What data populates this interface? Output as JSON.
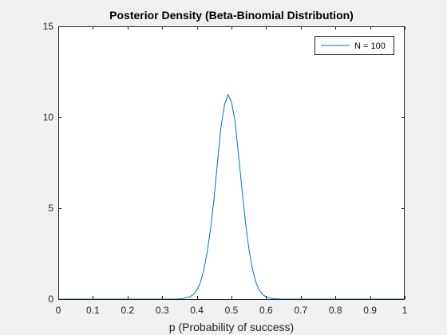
{
  "chart_data": {
    "type": "line",
    "title": "Posterior Density (Beta-Binomial Distribution)",
    "xlabel": "p (Probability of success)",
    "ylabel": "",
    "xlim": [
      0,
      1
    ],
    "ylim": [
      0,
      15
    ],
    "xticks": [
      0,
      0.1,
      0.2,
      0.3,
      0.4,
      0.5,
      0.6,
      0.7,
      0.8,
      0.9,
      1
    ],
    "xtick_labels": [
      "0",
      "0.1",
      "0.2",
      "0.3",
      "0.4",
      "0.5",
      "0.6",
      "0.7",
      "0.8",
      "0.9",
      "1"
    ],
    "yticks": [
      0,
      5,
      10,
      15
    ],
    "ytick_labels": [
      "0",
      "5",
      "10",
      "15"
    ],
    "grid": false,
    "legend_position": "top-right",
    "series": [
      {
        "name": "N = 100",
        "color": "#0072bd",
        "x": [
          0,
          0.1,
          0.2,
          0.3,
          0.34,
          0.36,
          0.38,
          0.39,
          0.4,
          0.41,
          0.42,
          0.43,
          0.44,
          0.45,
          0.46,
          0.47,
          0.48,
          0.49,
          0.5,
          0.51,
          0.52,
          0.53,
          0.54,
          0.55,
          0.56,
          0.57,
          0.58,
          0.59,
          0.6,
          0.62,
          0.64,
          0.7,
          0.8,
          0.9,
          1.0
        ],
        "y": [
          0,
          0,
          0,
          0,
          0.005,
          0.03,
          0.13,
          0.25,
          0.5,
          0.9,
          1.6,
          2.6,
          3.9,
          5.6,
          7.6,
          9.5,
          10.7,
          11.25,
          10.85,
          9.8,
          8.0,
          6.1,
          4.3,
          2.8,
          1.7,
          0.95,
          0.5,
          0.25,
          0.12,
          0.02,
          0.004,
          0,
          0,
          0,
          0
        ]
      }
    ]
  }
}
